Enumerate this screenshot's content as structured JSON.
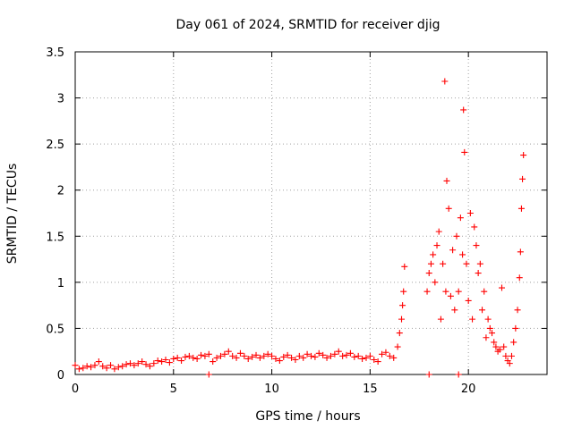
{
  "chart_data": {
    "type": "scatter",
    "title": "Day 061 of 2024, SRMTID for receiver djig",
    "xlabel": "GPS time / hours",
    "ylabel": "SRMTID / TECUs",
    "xlim": [
      0,
      24
    ],
    "ylim": [
      0,
      3.5
    ],
    "xticks": [
      0,
      5,
      10,
      15,
      20
    ],
    "xtick_labels": [
      "0",
      "5",
      "10",
      "15",
      "20"
    ],
    "yticks": [
      0,
      0.5,
      1,
      1.5,
      2,
      2.5,
      3,
      3.5
    ],
    "ytick_labels": [
      "0",
      "0.5",
      "1",
      "1.5",
      "2",
      "2.5",
      "3",
      "3.5"
    ],
    "grid": true,
    "marker": "+",
    "color": "#ff0000",
    "series": [
      {
        "name": "SRMTID",
        "x": [
          0.0,
          0.2,
          0.4,
          0.6,
          0.8,
          1.0,
          1.2,
          1.4,
          1.6,
          1.8,
          2.0,
          2.2,
          2.4,
          2.6,
          2.8,
          3.0,
          3.2,
          3.4,
          3.6,
          3.8,
          4.0,
          4.2,
          4.4,
          4.6,
          4.8,
          5.0,
          5.2,
          5.4,
          5.6,
          5.8,
          6.0,
          6.2,
          6.4,
          6.6,
          6.8,
          7.0,
          7.2,
          7.4,
          7.6,
          7.8,
          8.0,
          8.2,
          8.4,
          8.6,
          8.8,
          9.0,
          9.2,
          9.4,
          9.6,
          9.8,
          10.0,
          10.2,
          10.4,
          10.6,
          10.8,
          11.0,
          11.2,
          11.4,
          11.6,
          11.8,
          12.0,
          12.2,
          12.4,
          12.6,
          12.8,
          13.0,
          13.2,
          13.4,
          13.6,
          13.8,
          14.0,
          14.2,
          14.4,
          14.6,
          14.8,
          15.0,
          15.2,
          15.4,
          15.6,
          15.8,
          16.0,
          16.2,
          16.4,
          16.5,
          16.6,
          16.65,
          16.7,
          16.75,
          17.9,
          18.0,
          18.1,
          18.2,
          18.3,
          18.4,
          18.5,
          18.6,
          18.7,
          18.8,
          18.85,
          18.9,
          19.0,
          19.1,
          19.2,
          19.3,
          19.4,
          19.5,
          19.6,
          19.7,
          19.75,
          19.8,
          19.9,
          20.0,
          20.1,
          20.2,
          20.3,
          20.4,
          20.5,
          20.6,
          20.7,
          20.8,
          20.9,
          21.0,
          21.1,
          21.2,
          21.3,
          21.4,
          21.5,
          21.6,
          21.7,
          21.8,
          21.9,
          22.0,
          22.1,
          22.2,
          22.3,
          22.4,
          22.5,
          22.6,
          22.65,
          22.7,
          22.75,
          22.8,
          18.0,
          19.5,
          6.8
        ],
        "y": [
          0.1,
          0.06,
          0.07,
          0.09,
          0.08,
          0.1,
          0.14,
          0.09,
          0.07,
          0.1,
          0.06,
          0.08,
          0.09,
          0.11,
          0.12,
          0.1,
          0.12,
          0.14,
          0.11,
          0.09,
          0.12,
          0.15,
          0.14,
          0.16,
          0.13,
          0.17,
          0.18,
          0.15,
          0.19,
          0.2,
          0.18,
          0.17,
          0.21,
          0.2,
          0.22,
          0.14,
          0.18,
          0.2,
          0.22,
          0.25,
          0.2,
          0.18,
          0.23,
          0.2,
          0.17,
          0.19,
          0.21,
          0.18,
          0.2,
          0.22,
          0.2,
          0.17,
          0.15,
          0.19,
          0.21,
          0.18,
          0.16,
          0.2,
          0.18,
          0.22,
          0.2,
          0.19,
          0.23,
          0.21,
          0.18,
          0.2,
          0.22,
          0.25,
          0.2,
          0.21,
          0.23,
          0.19,
          0.2,
          0.17,
          0.18,
          0.2,
          0.16,
          0.14,
          0.22,
          0.24,
          0.2,
          0.18,
          0.3,
          0.45,
          0.6,
          0.75,
          0.9,
          1.17,
          0.9,
          1.1,
          1.2,
          1.3,
          1.0,
          1.4,
          1.55,
          0.6,
          1.2,
          3.18,
          0.9,
          2.1,
          1.8,
          0.85,
          1.35,
          0.7,
          1.5,
          0.9,
          1.7,
          1.3,
          2.87,
          2.41,
          1.2,
          0.8,
          1.75,
          0.6,
          1.6,
          1.4,
          1.1,
          1.2,
          0.7,
          0.9,
          0.4,
          0.6,
          0.5,
          0.45,
          0.35,
          0.3,
          0.25,
          0.27,
          0.94,
          0.3,
          0.2,
          0.15,
          0.12,
          0.2,
          0.35,
          0.5,
          0.7,
          1.05,
          1.33,
          1.8,
          2.12,
          2.38,
          0.0,
          0.0,
          0.0
        ]
      }
    ]
  }
}
